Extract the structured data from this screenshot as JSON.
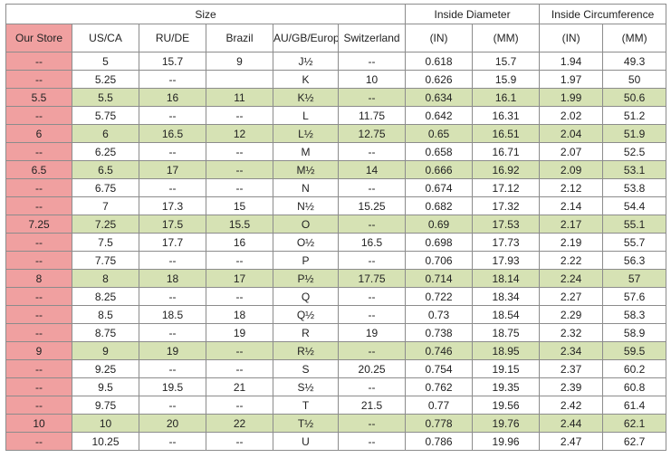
{
  "header": {
    "size_group": "Size",
    "diameter_group": "Inside Diameter",
    "circumference_group": "Inside Circumference",
    "columns": [
      "Our Store",
      "US/CA",
      "RU/DE",
      "Brazil",
      "AU/GB/Europe",
      "Switzerland",
      "(IN)",
      "(MM)",
      "(IN)",
      "(MM)"
    ]
  },
  "rows": [
    {
      "store": "--",
      "us": "5",
      "ru": "15.7",
      "br": "9",
      "au": "J½",
      "ch": "--",
      "din": "0.618",
      "dmm": "15.7",
      "cin": "1.94",
      "cmm": "49.3",
      "hl": false
    },
    {
      "store": "--",
      "us": "5.25",
      "ru": "--",
      "br": "",
      "au": "K",
      "ch": "10",
      "din": "0.626",
      "dmm": "15.9",
      "cin": "1.97",
      "cmm": "50",
      "hl": false
    },
    {
      "store": "5.5",
      "us": "5.5",
      "ru": "16",
      "br": "11",
      "au": "K½",
      "ch": "--",
      "din": "0.634",
      "dmm": "16.1",
      "cin": "1.99",
      "cmm": "50.6",
      "hl": true
    },
    {
      "store": "--",
      "us": "5.75",
      "ru": "--",
      "br": "--",
      "au": "L",
      "ch": "11.75",
      "din": "0.642",
      "dmm": "16.31",
      "cin": "2.02",
      "cmm": "51.2",
      "hl": false
    },
    {
      "store": "6",
      "us": "6",
      "ru": "16.5",
      "br": "12",
      "au": "L½",
      "ch": "12.75",
      "din": "0.65",
      "dmm": "16.51",
      "cin": "2.04",
      "cmm": "51.9",
      "hl": true
    },
    {
      "store": "--",
      "us": "6.25",
      "ru": "--",
      "br": "--",
      "au": "M",
      "ch": "--",
      "din": "0.658",
      "dmm": "16.71",
      "cin": "2.07",
      "cmm": "52.5",
      "hl": false
    },
    {
      "store": "6.5",
      "us": "6.5",
      "ru": "17",
      "br": "--",
      "au": "M½",
      "ch": "14",
      "din": "0.666",
      "dmm": "16.92",
      "cin": "2.09",
      "cmm": "53.1",
      "hl": true
    },
    {
      "store": "--",
      "us": "6.75",
      "ru": "--",
      "br": "--",
      "au": "N",
      "ch": "--",
      "din": "0.674",
      "dmm": "17.12",
      "cin": "2.12",
      "cmm": "53.8",
      "hl": false
    },
    {
      "store": "--",
      "us": "7",
      "ru": "17.3",
      "br": "15",
      "au": "N½",
      "ch": "15.25",
      "din": "0.682",
      "dmm": "17.32",
      "cin": "2.14",
      "cmm": "54.4",
      "hl": false
    },
    {
      "store": "7.25",
      "us": "7.25",
      "ru": "17.5",
      "br": "15.5",
      "au": "O",
      "ch": "--",
      "din": "0.69",
      "dmm": "17.53",
      "cin": "2.17",
      "cmm": "55.1",
      "hl": true
    },
    {
      "store": "--",
      "us": "7.5",
      "ru": "17.7",
      "br": "16",
      "au": "O½",
      "ch": "16.5",
      "din": "0.698",
      "dmm": "17.73",
      "cin": "2.19",
      "cmm": "55.7",
      "hl": false
    },
    {
      "store": "--",
      "us": "7.75",
      "ru": "--",
      "br": "--",
      "au": "P",
      "ch": "--",
      "din": "0.706",
      "dmm": "17.93",
      "cin": "2.22",
      "cmm": "56.3",
      "hl": false
    },
    {
      "store": "8",
      "us": "8",
      "ru": "18",
      "br": "17",
      "au": "P½",
      "ch": "17.75",
      "din": "0.714",
      "dmm": "18.14",
      "cin": "2.24",
      "cmm": "57",
      "hl": true
    },
    {
      "store": "--",
      "us": "8.25",
      "ru": "--",
      "br": "--",
      "au": "Q",
      "ch": "--",
      "din": "0.722",
      "dmm": "18.34",
      "cin": "2.27",
      "cmm": "57.6",
      "hl": false
    },
    {
      "store": "--",
      "us": "8.5",
      "ru": "18.5",
      "br": "18",
      "au": "Q½",
      "ch": "--",
      "din": "0.73",
      "dmm": "18.54",
      "cin": "2.29",
      "cmm": "58.3",
      "hl": false
    },
    {
      "store": "--",
      "us": "8.75",
      "ru": "--",
      "br": "19",
      "au": "R",
      "ch": "19",
      "din": "0.738",
      "dmm": "18.75",
      "cin": "2.32",
      "cmm": "58.9",
      "hl": false
    },
    {
      "store": "9",
      "us": "9",
      "ru": "19",
      "br": "--",
      "au": "R½",
      "ch": "--",
      "din": "0.746",
      "dmm": "18.95",
      "cin": "2.34",
      "cmm": "59.5",
      "hl": true
    },
    {
      "store": "--",
      "us": "9.25",
      "ru": "--",
      "br": "--",
      "au": "S",
      "ch": "20.25",
      "din": "0.754",
      "dmm": "19.15",
      "cin": "2.37",
      "cmm": "60.2",
      "hl": false
    },
    {
      "store": "--",
      "us": "9.5",
      "ru": "19.5",
      "br": "21",
      "au": "S½",
      "ch": "--",
      "din": "0.762",
      "dmm": "19.35",
      "cin": "2.39",
      "cmm": "60.8",
      "hl": false
    },
    {
      "store": "--",
      "us": "9.75",
      "ru": "--",
      "br": "--",
      "au": "T",
      "ch": "21.5",
      "din": "0.77",
      "dmm": "19.56",
      "cin": "2.42",
      "cmm": "61.4",
      "hl": false
    },
    {
      "store": "10",
      "us": "10",
      "ru": "20",
      "br": "22",
      "au": "T½",
      "ch": "--",
      "din": "0.778",
      "dmm": "19.76",
      "cin": "2.44",
      "cmm": "62.1",
      "hl": true
    },
    {
      "store": "--",
      "us": "10.25",
      "ru": "--",
      "br": "--",
      "au": "U",
      "ch": "--",
      "din": "0.786",
      "dmm": "19.96",
      "cin": "2.47",
      "cmm": "62.7",
      "hl": false
    }
  ],
  "colors": {
    "store_column": "#f0a0a0",
    "highlight_row": "#d6e2b4",
    "border": "#8c8c8c"
  }
}
